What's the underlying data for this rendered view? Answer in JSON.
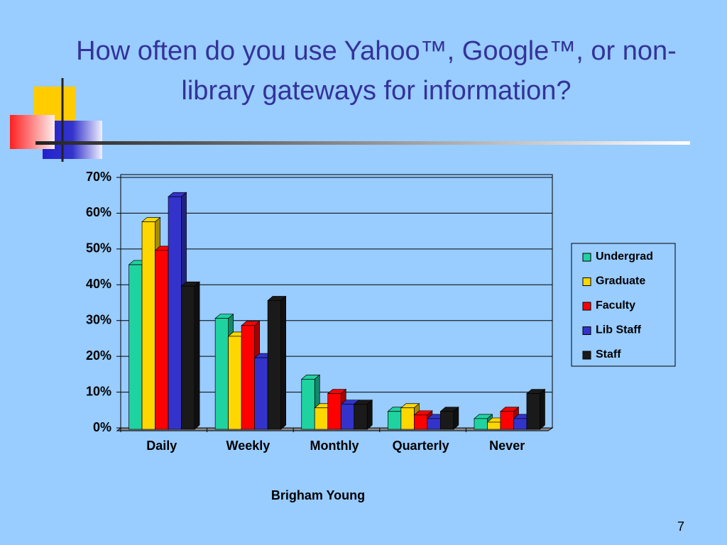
{
  "slide": {
    "title": "How often do you use Yahoo™, Google™, or non-library gateways for information?",
    "page_number": "7"
  },
  "chart_data": {
    "type": "bar",
    "x_label": "Brigham Young",
    "categories": [
      "Daily",
      "Weekly",
      "Monthly",
      "Quarterly",
      "Never"
    ],
    "series": [
      {
        "name": "Undergrad",
        "color": "#1fd3a0",
        "values": [
          46,
          31,
          14,
          5,
          3
        ]
      },
      {
        "name": "Graduate",
        "color": "#ffd700",
        "values": [
          58,
          26,
          6,
          6,
          2
        ]
      },
      {
        "name": "Faculty",
        "color": "#ff0000",
        "values": [
          50,
          29,
          10,
          4,
          5
        ]
      },
      {
        "name": "Lib Staff",
        "color": "#3333cc",
        "values": [
          65,
          20,
          7,
          3,
          3
        ]
      },
      {
        "name": "Staff",
        "color": "#1a1a1a",
        "values": [
          40,
          36,
          7,
          5,
          10
        ]
      }
    ],
    "ylim": [
      0,
      70
    ],
    "yticks": [
      {
        "value": 0,
        "label": "0%"
      },
      {
        "value": 10,
        "label": "10%"
      },
      {
        "value": 20,
        "label": "20%"
      },
      {
        "value": 30,
        "label": "30%"
      },
      {
        "value": 40,
        "label": "40%"
      },
      {
        "value": 50,
        "label": "50%"
      },
      {
        "value": 60,
        "label": "60%"
      },
      {
        "value": 70,
        "label": "70%"
      }
    ],
    "grid": true,
    "legend": "right"
  }
}
